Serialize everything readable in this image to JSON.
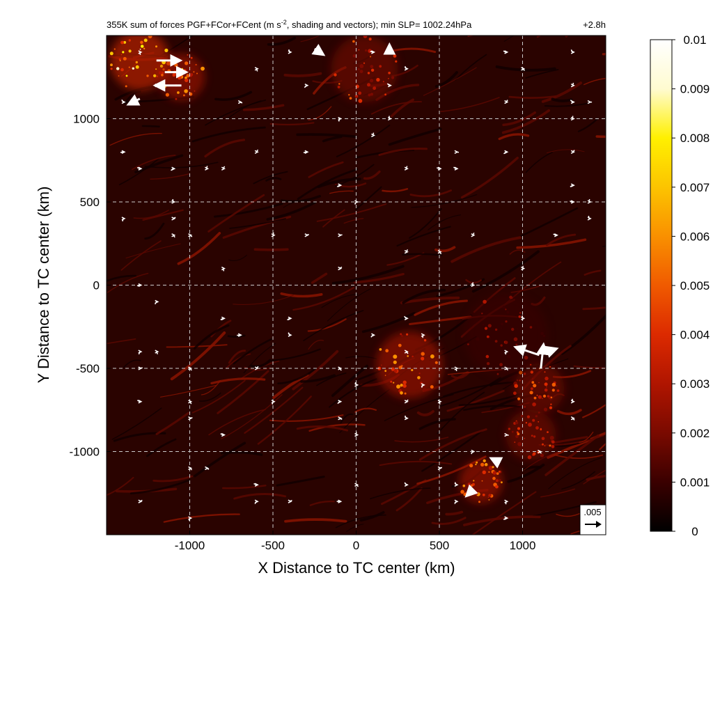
{
  "chart_data": {
    "type": "heatmap",
    "title": "355K sum of forces PGF+FCor+FCent (m s⁻², shading and vectors); min SLP= 1002.24hPa",
    "title_parts": {
      "main": "355K sum of forces PGF+FCor+FCent (m s",
      "sup": "-2",
      "rest": ", shading and vectors); min SLP= 1002.24hPa"
    },
    "time_label": "+2.8h",
    "xlabel": "X Distance to TC center (km)",
    "ylabel": "Y Distance to TC center (km)",
    "xlim": [
      -1500,
      1500
    ],
    "ylim": [
      -1500,
      1500
    ],
    "xticks": [
      -1000,
      -500,
      0,
      500,
      1000
    ],
    "yticks": [
      -1000,
      -500,
      0,
      500,
      1000
    ],
    "grid": true,
    "colorbar": {
      "range": [
        0,
        0.01
      ],
      "ticks": [
        "0.01",
        "0.009",
        "0.008",
        "0.007",
        "0.006",
        "0.005",
        "0.004",
        "0.003",
        "0.002",
        "0.001",
        "0"
      ],
      "colormap": [
        "#000000",
        "#3a0000",
        "#7a0a00",
        "#b01500",
        "#dc2a00",
        "#f05a00",
        "#f99000",
        "#fcc400",
        "#fff000",
        "#fffbd0",
        "#ffffff"
      ]
    },
    "reference_vector": {
      "label": ".005",
      "value": 0.005
    },
    "hotspots": [
      {
        "x": 320,
        "y": -480,
        "intensity": 0.0045,
        "radius": 200
      },
      {
        "x": 1100,
        "y": -620,
        "intensity": 0.004,
        "radius": 150
      },
      {
        "x": 1050,
        "y": -900,
        "intensity": 0.0035,
        "radius": 150
      },
      {
        "x": 750,
        "y": -1180,
        "intensity": 0.0045,
        "radius": 130
      },
      {
        "x": -1300,
        "y": 1350,
        "intensity": 0.0065,
        "radius": 180
      },
      {
        "x": -1050,
        "y": 1250,
        "intensity": 0.005,
        "radius": 140
      },
      {
        "x": 50,
        "y": 1300,
        "intensity": 0.0035,
        "radius": 200
      },
      {
        "x": 900,
        "y": -300,
        "intensity": 0.002,
        "radius": 250
      }
    ],
    "vectors": [
      {
        "x": -1200,
        "y": 1350,
        "u": 0.0045,
        "v": 0
      },
      {
        "x": -1050,
        "y": 1200,
        "u": -0.005,
        "v": 0
      },
      {
        "x": -1150,
        "y": 1280,
        "u": 0.004,
        "v": 0
      },
      {
        "x": -1300,
        "y": 1120,
        "u": -0.002,
        "v": -0.001
      },
      {
        "x": -250,
        "y": 1420,
        "u": 0.0015,
        "v": -0.001
      },
      {
        "x": 200,
        "y": 1390,
        "u": 0,
        "v": 0.0015
      },
      {
        "x": 1100,
        "y": -420,
        "u": -0.0045,
        "v": 0.0015
      },
      {
        "x": 1110,
        "y": -500,
        "u": 0.0005,
        "v": 0.0045
      },
      {
        "x": 1150,
        "y": -400,
        "u": 0.0015,
        "v": 0.0005
      },
      {
        "x": 700,
        "y": -1230,
        "u": -0.001,
        "v": -0.001
      },
      {
        "x": 850,
        "y": -1060,
        "u": -0.001,
        "v": 0.0005
      }
    ]
  }
}
